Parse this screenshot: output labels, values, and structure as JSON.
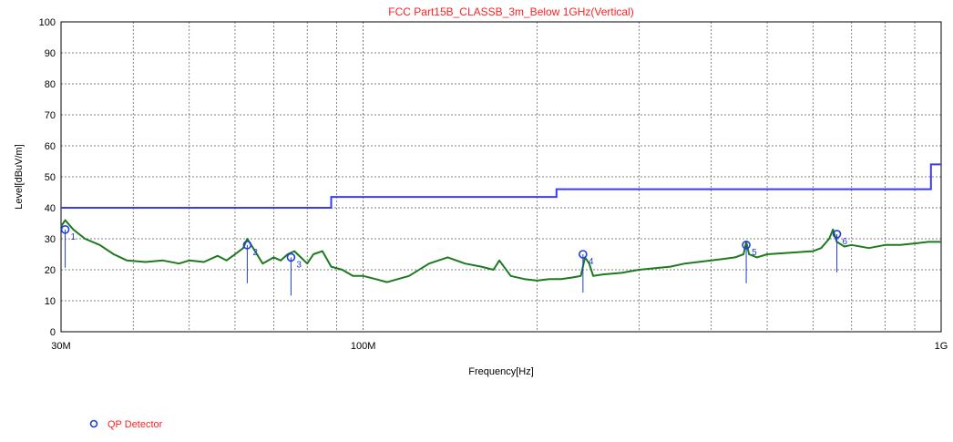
{
  "chart_data": {
    "type": "line",
    "title": "FCC Part15B_CLASSB_3m_Below 1GHz(Vertical)",
    "xlabel": "Frequency[Hz]",
    "ylabel": "Level[dBuV/m]",
    "x_scale": "log",
    "xlim": [
      30000000,
      1000000000
    ],
    "ylim": [
      0,
      100
    ],
    "yticks": [
      "0",
      "10",
      "20",
      "30",
      "40",
      "50",
      "60",
      "70",
      "80",
      "90",
      "100"
    ],
    "xtick_labels": [
      {
        "x": 30000000,
        "label": "30M"
      },
      {
        "x": 100000000,
        "label": "100M"
      },
      {
        "x": 1000000000,
        "label": "1G"
      }
    ],
    "grid": true,
    "limit_line": {
      "color": "#3a3aff",
      "x": [
        30000000,
        88000000,
        88000000,
        216000000,
        216000000,
        960000000,
        960000000,
        1000000000
      ],
      "y": [
        40,
        40,
        43.5,
        43.5,
        46,
        46,
        54,
        54
      ]
    },
    "trace": {
      "color": "#1e7a1e",
      "x": [
        30000000,
        30500000,
        31500000,
        33000000,
        35000000,
        37000000,
        39000000,
        42000000,
        45000000,
        48000000,
        50000000,
        53000000,
        56000000,
        58000000,
        60000000,
        62000000,
        63000000,
        65000000,
        67000000,
        70000000,
        72000000,
        74000000,
        76000000,
        78000000,
        80000000,
        82000000,
        85000000,
        88000000,
        92000000,
        96000000,
        100000000,
        105000000,
        110000000,
        120000000,
        130000000,
        140000000,
        150000000,
        160000000,
        168000000,
        172000000,
        180000000,
        190000000,
        200000000,
        210000000,
        220000000,
        230000000,
        238000000,
        242000000,
        246000000,
        250000000,
        260000000,
        280000000,
        300000000,
        320000000,
        340000000,
        360000000,
        380000000,
        400000000,
        420000000,
        440000000,
        455000000,
        460000000,
        465000000,
        480000000,
        500000000,
        550000000,
        600000000,
        620000000,
        640000000,
        650000000,
        660000000,
        680000000,
        700000000,
        750000000,
        800000000,
        850000000,
        900000000,
        950000000,
        1000000000
      ],
      "y": [
        34,
        36,
        33,
        30,
        28,
        25,
        23,
        22.5,
        23,
        22,
        23,
        22.5,
        24.5,
        23,
        25,
        27,
        30,
        26,
        22,
        24,
        23,
        25,
        26,
        24,
        22,
        25,
        26,
        21,
        20,
        18,
        18,
        17,
        16,
        18,
        22,
        24,
        22,
        21,
        20,
        23,
        18,
        17,
        16.5,
        17,
        17,
        17.5,
        18,
        24,
        22,
        18,
        18.5,
        19,
        20,
        20.5,
        21,
        22,
        22.5,
        23,
        23.5,
        24,
        25,
        29,
        25,
        24,
        25,
        25.5,
        26,
        27,
        30,
        33,
        29,
        27.5,
        28,
        27,
        28,
        28,
        28.5,
        29,
        29
      ]
    },
    "markers": {
      "legend_label": "QP Detector",
      "color": "#1f3fdc",
      "points": [
        {
          "id": "1",
          "x": 30500000,
          "y": 33
        },
        {
          "id": "2",
          "x": 63000000,
          "y": 28
        },
        {
          "id": "3",
          "x": 75000000,
          "y": 24
        },
        {
          "id": "4",
          "x": 240000000,
          "y": 25
        },
        {
          "id": "5",
          "x": 460000000,
          "y": 28
        },
        {
          "id": "6",
          "x": 660000000,
          "y": 31.5
        }
      ]
    }
  }
}
